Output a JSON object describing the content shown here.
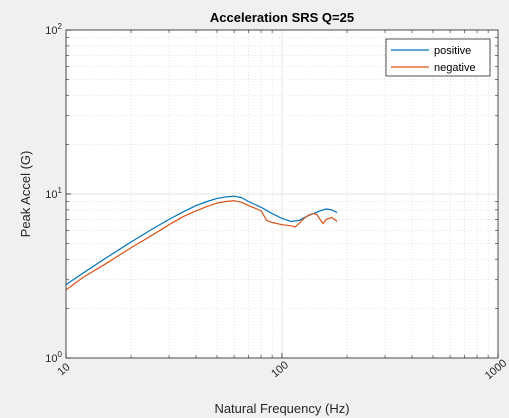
{
  "chart_data": {
    "type": "line",
    "title": "Acceleration SRS Q=25",
    "xlabel": "Natural Frequency (Hz)",
    "ylabel": "Peak Accel (G)",
    "x_scale": "log",
    "y_scale": "log",
    "xlim": [
      10,
      1000
    ],
    "ylim": [
      1,
      100
    ],
    "x_ticks": [
      {
        "value": 10,
        "label": "10"
      },
      {
        "value": 100,
        "label": "100"
      },
      {
        "value": 1000,
        "label": "1000"
      }
    ],
    "y_ticks": [
      {
        "value": 1,
        "base": "10",
        "exp": "0"
      },
      {
        "value": 10,
        "base": "10",
        "exp": "1"
      },
      {
        "value": 100,
        "base": "10",
        "exp": "2"
      }
    ],
    "grid": "on (major and minor)",
    "legend_position": "top-right",
    "series": [
      {
        "name": "positive",
        "color": "#0072BD",
        "points": [
          [
            10,
            2.8
          ],
          [
            12,
            3.3
          ],
          [
            15,
            4.0
          ],
          [
            20,
            5.1
          ],
          [
            25,
            6.1
          ],
          [
            30,
            7.0
          ],
          [
            35,
            7.8
          ],
          [
            40,
            8.5
          ],
          [
            45,
            9.0
          ],
          [
            50,
            9.4
          ],
          [
            55,
            9.6
          ],
          [
            60,
            9.7
          ],
          [
            65,
            9.5
          ],
          [
            70,
            9.0
          ],
          [
            80,
            8.3
          ],
          [
            90,
            7.6
          ],
          [
            100,
            7.1
          ],
          [
            110,
            6.8
          ],
          [
            120,
            6.9
          ],
          [
            130,
            7.3
          ],
          [
            140,
            7.6
          ],
          [
            150,
            7.9
          ],
          [
            160,
            8.1
          ],
          [
            170,
            8.0
          ],
          [
            180,
            7.7
          ]
        ]
      },
      {
        "name": "negative",
        "color": "#D95319",
        "points": [
          [
            10,
            2.6
          ],
          [
            12,
            3.1
          ],
          [
            15,
            3.7
          ],
          [
            20,
            4.7
          ],
          [
            25,
            5.6
          ],
          [
            30,
            6.5
          ],
          [
            35,
            7.3
          ],
          [
            40,
            7.9
          ],
          [
            45,
            8.4
          ],
          [
            50,
            8.8
          ],
          [
            55,
            9.0
          ],
          [
            60,
            9.1
          ],
          [
            65,
            8.9
          ],
          [
            70,
            8.5
          ],
          [
            75,
            8.2
          ],
          [
            80,
            7.9
          ],
          [
            85,
            6.9
          ],
          [
            90,
            6.7
          ],
          [
            100,
            6.5
          ],
          [
            110,
            6.4
          ],
          [
            115,
            6.3
          ],
          [
            120,
            6.6
          ],
          [
            125,
            7.0
          ],
          [
            130,
            7.3
          ],
          [
            135,
            7.5
          ],
          [
            140,
            7.6
          ],
          [
            145,
            7.5
          ],
          [
            150,
            7.0
          ],
          [
            155,
            6.6
          ],
          [
            160,
            7.0
          ],
          [
            170,
            7.2
          ],
          [
            180,
            6.8
          ]
        ]
      }
    ]
  }
}
